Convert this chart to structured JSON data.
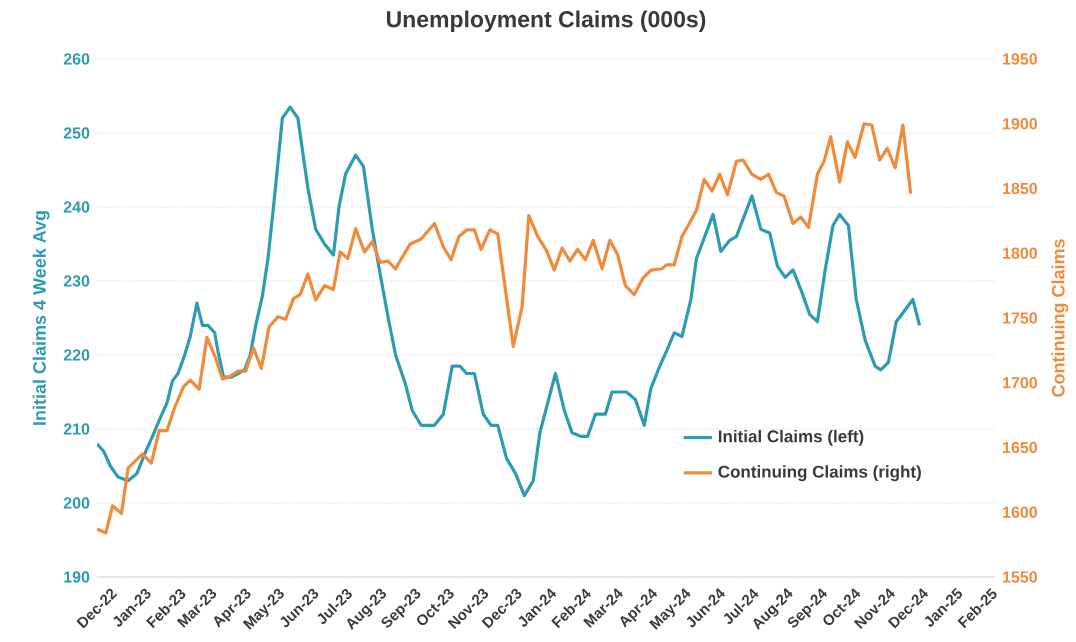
{
  "chart_data": {
    "type": "line",
    "title": "Unemployment Claims (000s)",
    "ylabel": "Initial Claims 4 Week Avg",
    "y2label": "Continuing Claims",
    "xlim": [
      "2022-11-19",
      "2025-02-05"
    ],
    "xticks": [
      {
        "value": "2022-12-01",
        "label": "Dec-22"
      },
      {
        "value": "2023-01-01",
        "label": "Jan-23"
      },
      {
        "value": "2023-02-01",
        "label": "Feb-23"
      },
      {
        "value": "2023-03-01",
        "label": "Mar-23"
      },
      {
        "value": "2023-04-01",
        "label": "Apr-23"
      },
      {
        "value": "2023-05-01",
        "label": "May-23"
      },
      {
        "value": "2023-06-01",
        "label": "Jun-23"
      },
      {
        "value": "2023-07-01",
        "label": "Jul-23"
      },
      {
        "value": "2023-08-01",
        "label": "Aug-23"
      },
      {
        "value": "2023-09-01",
        "label": "Sep-23"
      },
      {
        "value": "2023-10-01",
        "label": "Oct-23"
      },
      {
        "value": "2023-11-01",
        "label": "Nov-23"
      },
      {
        "value": "2023-12-01",
        "label": "Dec-23"
      },
      {
        "value": "2024-01-01",
        "label": "Jan-24"
      },
      {
        "value": "2024-02-01",
        "label": "Feb-24"
      },
      {
        "value": "2024-03-01",
        "label": "Mar-24"
      },
      {
        "value": "2024-04-01",
        "label": "Apr-24"
      },
      {
        "value": "2024-05-01",
        "label": "May-24"
      },
      {
        "value": "2024-06-01",
        "label": "Jun-24"
      },
      {
        "value": "2024-07-01",
        "label": "Jul-24"
      },
      {
        "value": "2024-08-01",
        "label": "Aug-24"
      },
      {
        "value": "2024-09-01",
        "label": "Sep-24"
      },
      {
        "value": "2024-10-01",
        "label": "Oct-24"
      },
      {
        "value": "2024-11-01",
        "label": "Nov-24"
      },
      {
        "value": "2024-12-01",
        "label": "Dec-24"
      },
      {
        "value": "2025-01-01",
        "label": "Jan-25"
      },
      {
        "value": "2025-02-01",
        "label": "Feb-25"
      }
    ],
    "ylim": [
      190,
      260
    ],
    "yticks": [
      190,
      200,
      210,
      220,
      230,
      240,
      250,
      260
    ],
    "y2lim": [
      1550,
      1950
    ],
    "y2ticks": [
      1550,
      1600,
      1650,
      1700,
      1750,
      1800,
      1850,
      1900,
      1950
    ],
    "grid": "y",
    "legend": "bottom right",
    "series": [
      {
        "name": "Initial Claims (left)",
        "color": "#2e9bb0",
        "x": [
          "2022-11-19",
          "2022-11-25",
          "2022-12-01",
          "2022-12-08",
          "2022-12-17",
          "2022-12-25",
          "2023-01-02",
          "2023-01-08",
          "2023-01-15",
          "2023-01-21",
          "2023-01-26",
          "2023-01-31",
          "2023-02-06",
          "2023-02-11",
          "2023-02-17",
          "2023-02-22",
          "2023-02-27",
          "2023-03-05",
          "2023-03-08",
          "2023-03-13",
          "2023-03-20",
          "2023-03-26",
          "2023-04-01",
          "2023-04-06",
          "2023-04-11",
          "2023-04-17",
          "2023-04-22",
          "2023-04-27",
          "2023-05-05",
          "2023-05-12",
          "2023-05-19",
          "2023-05-28",
          "2023-06-04",
          "2023-06-12",
          "2023-06-20",
          "2023-06-25",
          "2023-07-01",
          "2023-07-10",
          "2023-07-17",
          "2023-07-25",
          "2023-08-01",
          "2023-08-09",
          "2023-08-15",
          "2023-08-24",
          "2023-08-30",
          "2023-09-07",
          "2023-09-19",
          "2023-09-27",
          "2023-10-05",
          "2023-10-12",
          "2023-10-18",
          "2023-10-25",
          "2023-11-02",
          "2023-11-09",
          "2023-11-15",
          "2023-11-23",
          "2023-12-01",
          "2023-12-09",
          "2023-12-17",
          "2023-12-23",
          "2023-12-30",
          "2024-01-06",
          "2024-01-14",
          "2024-01-21",
          "2024-01-29",
          "2024-02-04",
          "2024-02-11",
          "2024-02-20",
          "2024-02-26",
          "2024-03-10",
          "2024-03-18",
          "2024-03-26",
          "2024-04-01",
          "2024-04-09",
          "2024-04-15",
          "2024-04-22",
          "2024-04-29",
          "2024-05-07",
          "2024-05-12",
          "2024-05-27",
          "2024-06-03",
          "2024-06-11",
          "2024-06-17",
          "2024-07-01",
          "2024-07-09",
          "2024-07-17",
          "2024-07-24",
          "2024-07-31",
          "2024-08-07",
          "2024-08-15",
          "2024-08-22",
          "2024-08-29",
          "2024-09-05",
          "2024-09-12",
          "2024-09-18",
          "2024-09-26",
          "2024-10-03",
          "2024-10-11",
          "2024-10-20",
          "2024-10-25",
          "2024-11-01",
          "2024-11-08",
          "2024-11-23",
          "2024-11-29"
        ],
        "values": [
          208,
          207,
          205,
          203.5,
          203,
          204,
          207,
          209,
          211.5,
          213.5,
          216.5,
          217.5,
          220,
          222.5,
          227,
          224,
          224,
          223,
          220.5,
          217,
          217,
          217.5,
          218,
          220,
          224,
          228,
          233,
          240,
          252,
          253.5,
          252,
          242.5,
          237,
          235,
          233.5,
          240,
          244.5,
          247,
          245.5,
          237,
          231,
          224.5,
          220,
          216,
          212.5,
          210.5,
          210.5,
          212,
          218.5,
          218.5,
          217.5,
          217.5,
          212,
          210.5,
          210.5,
          206,
          204,
          201,
          203,
          209.5,
          213.5,
          217.5,
          212.5,
          209.5,
          209,
          209,
          212,
          212,
          215,
          215,
          214,
          210.5,
          215.5,
          218.5,
          220.5,
          223,
          222.5,
          227.5,
          233,
          239,
          234,
          235.5,
          236,
          241.5,
          237,
          236.5,
          232,
          230.5,
          231.5,
          228.5,
          225.5,
          224.5,
          231.5,
          237.5,
          239,
          237.5,
          227.5,
          222,
          218.5,
          218,
          219,
          224.5,
          227.5,
          224
        ]
      },
      {
        "name": "Continuing Claims (right)",
        "color": "#f08a3c",
        "axis": "y2",
        "x": [
          "2022-11-19",
          "2022-11-27",
          "2022-12-03",
          "2022-12-11",
          "2022-12-17",
          "2022-12-24",
          "2022-12-30",
          "2023-01-07",
          "2023-01-14",
          "2023-01-21",
          "2023-01-28",
          "2023-02-05",
          "2023-02-11",
          "2023-02-19",
          "2023-02-26",
          "2023-03-05",
          "2023-03-12",
          "2023-03-19",
          "2023-03-26",
          "2023-04-02",
          "2023-04-09",
          "2023-04-16",
          "2023-04-23",
          "2023-05-01",
          "2023-05-08",
          "2023-05-15",
          "2023-05-21",
          "2023-05-28",
          "2023-06-04",
          "2023-06-12",
          "2023-06-20",
          "2023-06-26",
          "2023-07-03",
          "2023-07-10",
          "2023-07-18",
          "2023-07-25",
          "2023-08-01",
          "2023-08-08",
          "2023-08-15",
          "2023-08-19",
          "2023-08-28",
          "2023-09-07",
          "2023-09-19",
          "2023-09-27",
          "2023-10-04",
          "2023-10-11",
          "2023-10-18",
          "2023-10-25",
          "2023-10-31",
          "2023-11-08",
          "2023-11-15",
          "2023-11-29",
          "2023-12-07",
          "2023-12-13",
          "2023-12-21",
          "2023-12-29",
          "2024-01-05",
          "2024-01-12",
          "2024-01-19",
          "2024-01-26",
          "2024-02-02",
          "2024-02-09",
          "2024-02-17",
          "2024-02-24",
          "2024-03-02",
          "2024-03-09",
          "2024-03-17",
          "2024-03-25",
          "2024-04-01",
          "2024-04-11",
          "2024-04-15",
          "2024-04-22",
          "2024-04-29",
          "2024-05-05",
          "2024-05-12",
          "2024-05-19",
          "2024-05-26",
          "2024-06-02",
          "2024-06-09",
          "2024-06-17",
          "2024-06-23",
          "2024-07-01",
          "2024-07-09",
          "2024-07-16",
          "2024-07-23",
          "2024-07-30",
          "2024-08-07",
          "2024-08-14",
          "2024-08-21",
          "2024-08-29",
          "2024-09-04",
          "2024-09-10",
          "2024-09-18",
          "2024-09-25",
          "2024-10-02",
          "2024-10-10",
          "2024-10-17",
          "2024-10-24",
          "2024-10-31",
          "2024-11-07",
          "2024-11-14",
          "2024-11-21"
        ],
        "values": [
          1587,
          1584,
          1605,
          1599,
          1634,
          1640,
          1645,
          1638,
          1663,
          1663,
          1681,
          1697,
          1702,
          1695,
          1735,
          1721,
          1703,
          1705,
          1709,
          1709,
          1727,
          1711,
          1743,
          1751,
          1749,
          1765,
          1768,
          1784,
          1764,
          1775,
          1772,
          1801,
          1796,
          1819,
          1801,
          1809,
          1793,
          1794,
          1788,
          1794,
          1807,
          1811,
          1823,
          1805,
          1795,
          1813,
          1818,
          1818,
          1803,
          1818,
          1815,
          1728,
          1759,
          1829,
          1813,
          1802,
          1787,
          1804,
          1794,
          1803,
          1795,
          1810,
          1788,
          1810,
          1799,
          1775,
          1768,
          1781,
          1787,
          1788,
          1791,
          1791,
          1813,
          1822,
          1833,
          1857,
          1848,
          1861,
          1845,
          1871,
          1872,
          1861,
          1857,
          1861,
          1847,
          1844,
          1823,
          1828,
          1820,
          1861,
          1871,
          1890,
          1855,
          1886,
          1874,
          1900,
          1899,
          1872,
          1881,
          1866,
          1899,
          1846
        ]
      }
    ]
  }
}
